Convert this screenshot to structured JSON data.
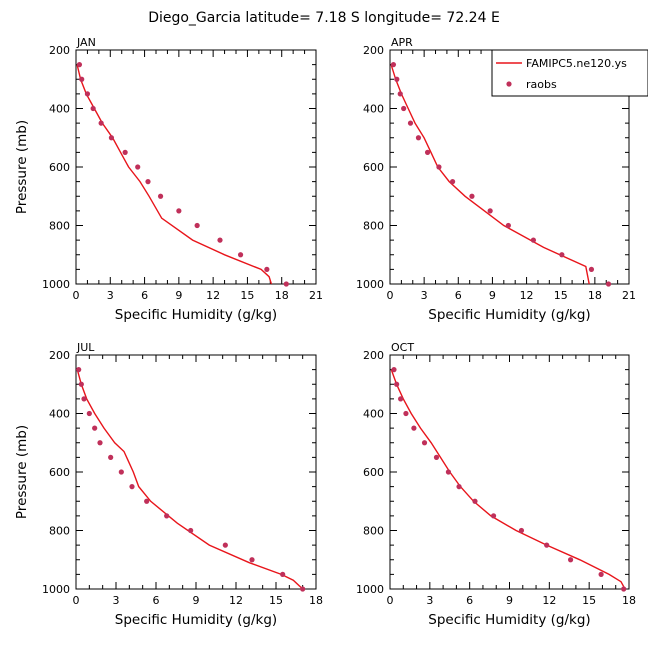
{
  "figure": {
    "title": "Diego_Garcia  latitude= 7.18 S longitude= 72.24 E",
    "legend": {
      "model_label": "FAMIPC5.ne120.ys",
      "obs_label": "raobs"
    },
    "colors": {
      "model_line": "#e8151b",
      "obs_marker": "#c0305a"
    }
  },
  "panels": [
    {
      "month": "JAN",
      "xlabel": "Specific Humidity (g/kg)",
      "ylabel": "Pressure (mb)"
    },
    {
      "month": "APR",
      "xlabel": "Specific Humidity (g/kg)",
      "ylabel": ""
    },
    {
      "month": "JUL",
      "xlabel": "Specific Humidity (g/kg)",
      "ylabel": "Pressure (mb)"
    },
    {
      "month": "OCT",
      "xlabel": "Specific Humidity (g/kg)",
      "ylabel": ""
    }
  ],
  "chart_data": [
    {
      "type": "line",
      "panel_label": "JAN",
      "xlabel": "Specific Humidity (g/kg)",
      "ylabel": "Pressure (mb)",
      "xlim": [
        0,
        21
      ],
      "ylim": [
        1000,
        200
      ],
      "xticks": [
        0,
        3,
        6,
        9,
        12,
        15,
        18,
        21
      ],
      "yticks": [
        200,
        400,
        600,
        800,
        1000
      ],
      "series": [
        {
          "name": "FAMIPC5.ne120.ys",
          "style": "line",
          "x": [
            0.1,
            0.4,
            0.9,
            1.6,
            2.3,
            3.2,
            3.9,
            4.6,
            5.6,
            6.4,
            7.5,
            10.2,
            13.0,
            16.2,
            16.9,
            17.1
          ],
          "y": [
            250,
            300,
            350,
            400,
            450,
            500,
            550,
            600,
            650,
            700,
            775,
            850,
            900,
            950,
            975,
            1000
          ]
        },
        {
          "name": "raobs",
          "style": "markers",
          "x": [
            0.3,
            0.5,
            1.0,
            1.5,
            2.2,
            3.1,
            4.3,
            5.4,
            6.3,
            7.4,
            9.0,
            10.6,
            12.6,
            14.4,
            16.7,
            18.4
          ],
          "y": [
            250,
            300,
            350,
            400,
            450,
            500,
            550,
            600,
            650,
            700,
            750,
            800,
            850,
            900,
            950,
            1000
          ]
        }
      ]
    },
    {
      "type": "line",
      "panel_label": "APR",
      "xlabel": "Specific Humidity (g/kg)",
      "ylabel": "",
      "xlim": [
        0,
        21
      ],
      "ylim": [
        1000,
        200
      ],
      "xticks": [
        0,
        3,
        6,
        9,
        12,
        15,
        18,
        21
      ],
      "yticks": [
        200,
        400,
        600,
        800,
        1000
      ],
      "legend": {
        "position": "top-right",
        "entries": [
          "FAMIPC5.ne120.ys",
          "raobs"
        ]
      },
      "series": [
        {
          "name": "FAMIPC5.ne120.ys",
          "style": "line",
          "x": [
            0.1,
            0.5,
            1.0,
            1.6,
            2.2,
            3.0,
            3.6,
            4.2,
            5.2,
            6.6,
            10.0,
            13.5,
            17.2,
            17.5
          ],
          "y": [
            250,
            300,
            350,
            400,
            450,
            500,
            550,
            600,
            650,
            700,
            800,
            875,
            940,
            1000
          ]
        },
        {
          "name": "raobs",
          "style": "markers",
          "x": [
            0.3,
            0.6,
            0.9,
            1.2,
            1.8,
            2.5,
            3.3,
            4.3,
            5.5,
            7.2,
            8.8,
            10.4,
            12.6,
            15.1,
            17.7,
            19.2
          ],
          "y": [
            250,
            300,
            350,
            400,
            450,
            500,
            550,
            600,
            650,
            700,
            750,
            800,
            850,
            900,
            950,
            1000
          ]
        }
      ]
    },
    {
      "type": "line",
      "panel_label": "JUL",
      "xlabel": "Specific Humidity (g/kg)",
      "ylabel": "Pressure (mb)",
      "xlim": [
        0,
        18
      ],
      "ylim": [
        1000,
        200
      ],
      "xticks": [
        0,
        3,
        6,
        9,
        12,
        15,
        18
      ],
      "yticks": [
        200,
        400,
        600,
        800,
        1000
      ],
      "series": [
        {
          "name": "FAMIPC5.ne120.ys",
          "style": "line",
          "x": [
            0.1,
            0.4,
            0.8,
            1.4,
            2.1,
            2.9,
            3.6,
            3.9,
            4.3,
            4.7,
            5.6,
            7.6,
            10.0,
            13.0,
            15.4,
            16.3,
            17.0
          ],
          "y": [
            250,
            300,
            350,
            400,
            450,
            500,
            530,
            560,
            600,
            650,
            700,
            775,
            850,
            910,
            950,
            970,
            1000
          ]
        },
        {
          "name": "raobs",
          "style": "markers",
          "x": [
            0.2,
            0.4,
            0.6,
            1.0,
            1.4,
            1.8,
            2.6,
            3.4,
            4.2,
            5.3,
            6.8,
            8.6,
            11.2,
            13.2,
            15.5,
            17.0
          ],
          "y": [
            250,
            300,
            350,
            400,
            450,
            500,
            550,
            600,
            650,
            700,
            750,
            800,
            850,
            900,
            950,
            1000
          ]
        }
      ]
    },
    {
      "type": "line",
      "panel_label": "OCT",
      "xlabel": "Specific Humidity (g/kg)",
      "ylabel": "",
      "xlim": [
        0,
        18
      ],
      "ylim": [
        1000,
        200
      ],
      "xticks": [
        0,
        3,
        6,
        9,
        12,
        15,
        18
      ],
      "yticks": [
        200,
        400,
        600,
        800,
        1000
      ],
      "series": [
        {
          "name": "FAMIPC5.ne120.ys",
          "style": "line",
          "x": [
            0.1,
            0.5,
            1.0,
            1.6,
            2.3,
            3.1,
            3.8,
            4.5,
            5.3,
            6.3,
            7.6,
            9.5,
            11.8,
            14.3,
            16.5,
            17.4,
            17.7
          ],
          "y": [
            250,
            300,
            350,
            400,
            450,
            500,
            550,
            600,
            650,
            700,
            750,
            800,
            850,
            900,
            950,
            975,
            1000
          ]
        },
        {
          "name": "raobs",
          "style": "markers",
          "x": [
            0.3,
            0.5,
            0.8,
            1.2,
            1.8,
            2.6,
            3.5,
            4.4,
            5.2,
            6.4,
            7.8,
            9.9,
            11.8,
            13.6,
            15.9,
            17.6
          ],
          "y": [
            250,
            300,
            350,
            400,
            450,
            500,
            550,
            600,
            650,
            700,
            750,
            800,
            850,
            900,
            950,
            1000
          ]
        }
      ]
    }
  ]
}
